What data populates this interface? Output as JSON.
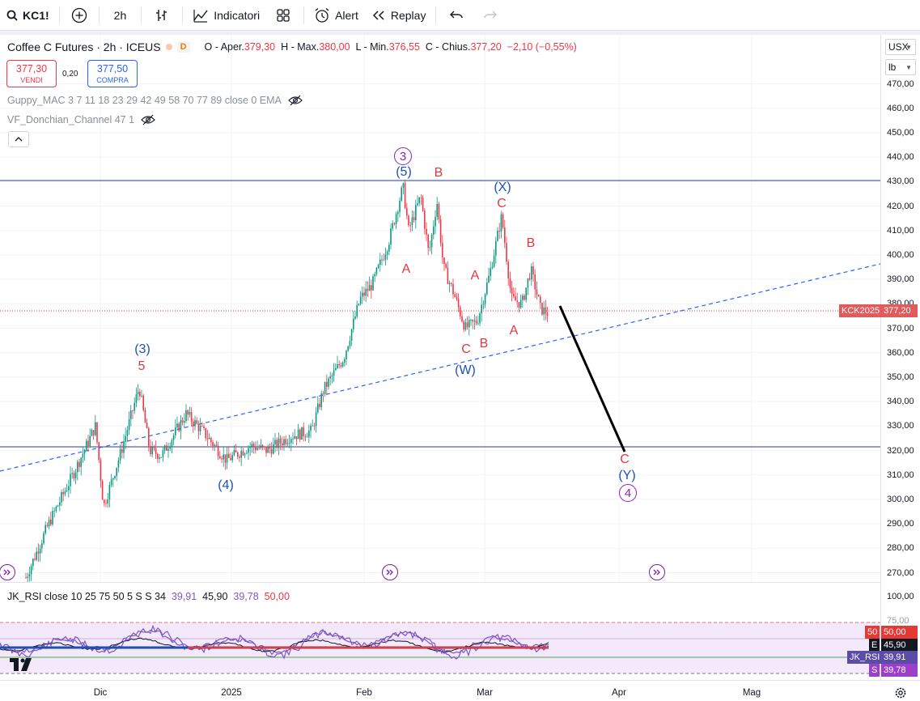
{
  "toolbar": {
    "symbol": "KC1!",
    "interval": "2h",
    "indicators_label": "Indicatori",
    "alert_label": "Alert",
    "replay_label": "Replay"
  },
  "legend": {
    "title": "Coffee C Futures · 2h · ICEUS",
    "d_badge": "D",
    "open_label": "O - Aper.",
    "open": "379,30",
    "high_label": "H - Max.",
    "high": "380,00",
    "low_label": "L - Min.",
    "low": "376,55",
    "close_label": "C - Chius.",
    "close": "377,20",
    "change": "−2,10 (−0,55%)"
  },
  "trade": {
    "sell_price": "377,30",
    "sell_label": "VENDI",
    "spread": "0,20",
    "buy_price": "377,50",
    "buy_label": "COMPRA"
  },
  "indicators": {
    "guppy": "Guppy_MAC 3 7 11 18 23 29 42 49 58 70 77 89 close 0 EMA",
    "donchian": "VF_Donchian_Channel 47 1"
  },
  "price_scale": {
    "currency": "USX",
    "unit": "lb",
    "ticks": [
      "470,00",
      "460,00",
      "450,00",
      "440,00",
      "430,00",
      "420,00",
      "410,00",
      "400,00",
      "390,00",
      "380,00",
      "370,00",
      "360,00",
      "350,00",
      "340,00",
      "330,00",
      "320,00",
      "310,00",
      "300,00",
      "290,00",
      "280,00",
      "270,00"
    ],
    "symbol_tag": "KCK2025",
    "last_price_tag": "377,20"
  },
  "wave_labels": {
    "w3_circle": "3",
    "w5": "(5)",
    "b1": "B",
    "a1": "A",
    "x": "(X)",
    "c_red": "C",
    "b2": "B",
    "a2": "A",
    "c2": "C",
    "b3": "B",
    "w_paren": "(W)",
    "a3": "A",
    "w3_paren": "(3)",
    "w5_red": "5",
    "w4_paren": "(4)",
    "c_target": "C",
    "y_paren": "(Y)",
    "w4_circle": "4"
  },
  "rsi": {
    "name": "JK_RSI close 10 25 75 50 5 S S 34",
    "v1": "39,91",
    "v2": "45,90",
    "v3": "39,78",
    "v4": "50,00",
    "ticks": [
      "100,00",
      "75,00"
    ],
    "tag_50_key": "50",
    "tag_50": "50,00",
    "tag_e_key": "E",
    "tag_e": "45,90",
    "tag_rsi_key": "JK_RSI",
    "tag_rsi": "39,91",
    "tag_s_key": "S",
    "tag_s": "39,78"
  },
  "time_scale": {
    "labels": [
      "Dic",
      "2025",
      "Feb",
      "Mar",
      "Apr",
      "Mag"
    ]
  },
  "colors": {
    "up": "#089981",
    "down": "#f23645",
    "wave_red": "#e03a3e",
    "wave_blue": "#1e4fb5",
    "wave_purple": "#8e24aa",
    "line_blue": "#2962ff"
  }
}
